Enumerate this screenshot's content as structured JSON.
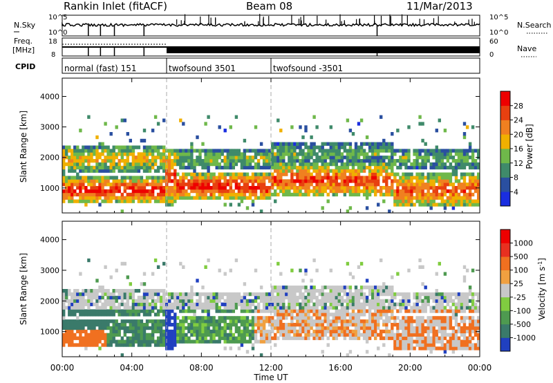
{
  "header": {
    "station": "Rankin Inlet (fitACF)",
    "beam": "Beam 08",
    "date": "11/Mar/2013"
  },
  "noise_panel": {
    "left_label": "N.Sky",
    "right_label": "N.Search",
    "left_ticks": [
      "10^5",
      "10^0"
    ],
    "right_ticks": [
      "10^5",
      "10^0"
    ]
  },
  "freq_panel": {
    "left_label_1": "Freq.",
    "left_label_2": "[MHz]",
    "left_ticks": [
      "18",
      "8"
    ],
    "right_ticks": [
      "60",
      "0"
    ],
    "right_label": "Nave"
  },
  "cpid_panel": {
    "label": "CPID",
    "segments": [
      {
        "start_hour": 0,
        "end_hour": 6,
        "label": "normal (fast) 151"
      },
      {
        "start_hour": 6,
        "end_hour": 12,
        "label": "twofsound 3501"
      },
      {
        "start_hour": 12,
        "end_hour": 24,
        "label": "twofsound -3501"
      }
    ]
  },
  "chart_data": [
    {
      "type": "heatmap",
      "name": "Power",
      "ylabel": "Slant Range [km]",
      "y_ticks": [
        1000,
        2000,
        3000,
        4000
      ],
      "ylim": [
        180,
        4600
      ],
      "xlim_hours": [
        0,
        24
      ],
      "colorbar": {
        "label": "Power [dB]",
        "ticks": [
          "4",
          "8",
          "12",
          "16",
          "20",
          "24",
          "28"
        ],
        "colors": [
          "#1a2ee0",
          "#2a4fa0",
          "#3f8a6a",
          "#6fb84a",
          "#f0b000",
          "#f08020",
          "#e84010",
          "#ee0000"
        ]
      }
    },
    {
      "type": "heatmap",
      "name": "Velocity",
      "ylabel": "Slant Range [km]",
      "y_ticks": [
        1000,
        2000,
        3000,
        4000
      ],
      "ylim": [
        180,
        4600
      ],
      "xlim_hours": [
        0,
        24
      ],
      "colorbar": {
        "label": "Velocity [m s^-1]",
        "ticks": [
          "1000",
          "500",
          "100",
          "25",
          "-25",
          "-100",
          "-500",
          "-1000"
        ],
        "colors": [
          "#2040c0",
          "#3a7a6a",
          "#4e9a50",
          "#80cc40",
          "#c8c8c8",
          "#f0a040",
          "#f07020",
          "#e83020",
          "#ee0000"
        ]
      }
    }
  ],
  "x_axis": {
    "ticks": [
      "00:00",
      "04:00",
      "08:00",
      "12:00",
      "16:00",
      "20:00",
      "00:00"
    ],
    "title": "Time UT"
  },
  "colors": {
    "gs_gray": "#c8c8c8"
  }
}
